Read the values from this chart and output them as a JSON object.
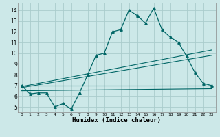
{
  "title": "",
  "xlabel": "Humidex (Indice chaleur)",
  "background_color": "#cce8e8",
  "grid_color": "#aacccc",
  "line_color": "#006666",
  "xlim": [
    -0.5,
    23.5
  ],
  "ylim": [
    4.5,
    14.7
  ],
  "xticks": [
    0,
    1,
    2,
    3,
    4,
    5,
    6,
    7,
    8,
    9,
    10,
    11,
    12,
    13,
    14,
    15,
    16,
    17,
    18,
    19,
    20,
    21,
    22,
    23
  ],
  "yticks": [
    5,
    6,
    7,
    8,
    9,
    10,
    11,
    12,
    13,
    14
  ],
  "main_x": [
    0,
    1,
    2,
    3,
    4,
    5,
    6,
    7,
    8,
    9,
    10,
    11,
    12,
    13,
    14,
    15,
    16,
    17,
    18,
    19,
    20,
    21,
    22,
    23
  ],
  "main_y": [
    7.0,
    6.2,
    6.3,
    6.3,
    5.0,
    5.3,
    4.8,
    6.3,
    8.0,
    9.8,
    10.0,
    12.0,
    12.2,
    14.0,
    13.5,
    12.8,
    14.2,
    12.2,
    11.5,
    11.0,
    9.7,
    8.2,
    7.2,
    7.0
  ],
  "line1_x": [
    0,
    23
  ],
  "line1_y": [
    7.0,
    7.0
  ],
  "line2_x": [
    0,
    23
  ],
  "line2_y": [
    6.5,
    6.7
  ],
  "line3_x": [
    0,
    23
  ],
  "line3_y": [
    6.8,
    9.8
  ],
  "line4_x": [
    0,
    23
  ],
  "line4_y": [
    6.9,
    10.3
  ]
}
